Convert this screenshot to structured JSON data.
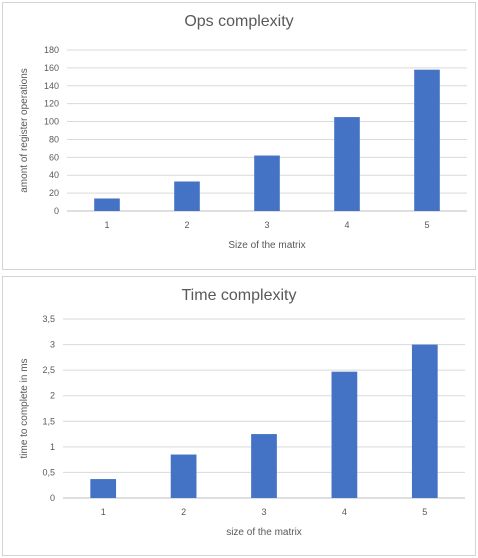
{
  "chart_data": [
    {
      "type": "bar",
      "title": "Ops complexity",
      "xlabel": "Size of the matrix",
      "ylabel": "amont of register operations",
      "categories": [
        "1",
        "2",
        "3",
        "4",
        "5"
      ],
      "values": [
        14,
        33,
        62,
        105,
        158
      ],
      "ylim": [
        0,
        180
      ],
      "yticks": [
        "0",
        "20",
        "40",
        "60",
        "80",
        "100",
        "120",
        "140",
        "160",
        "180"
      ],
      "bar_color": "#4472c4",
      "grid": true,
      "legend": "none"
    },
    {
      "type": "bar",
      "title": "Time complexity",
      "xlabel": "size of the matrix",
      "ylabel": "time to complete in ms",
      "categories": [
        "1",
        "2",
        "3",
        "4",
        "5"
      ],
      "values": [
        0.37,
        0.85,
        1.25,
        2.47,
        3.0
      ],
      "ylim": [
        0,
        3.5
      ],
      "yticks": [
        "0",
        "0,5",
        "1",
        "1,5",
        "2",
        "2,5",
        "3",
        "3,5"
      ],
      "bar_color": "#4472c4",
      "grid": true,
      "legend": "none"
    }
  ]
}
